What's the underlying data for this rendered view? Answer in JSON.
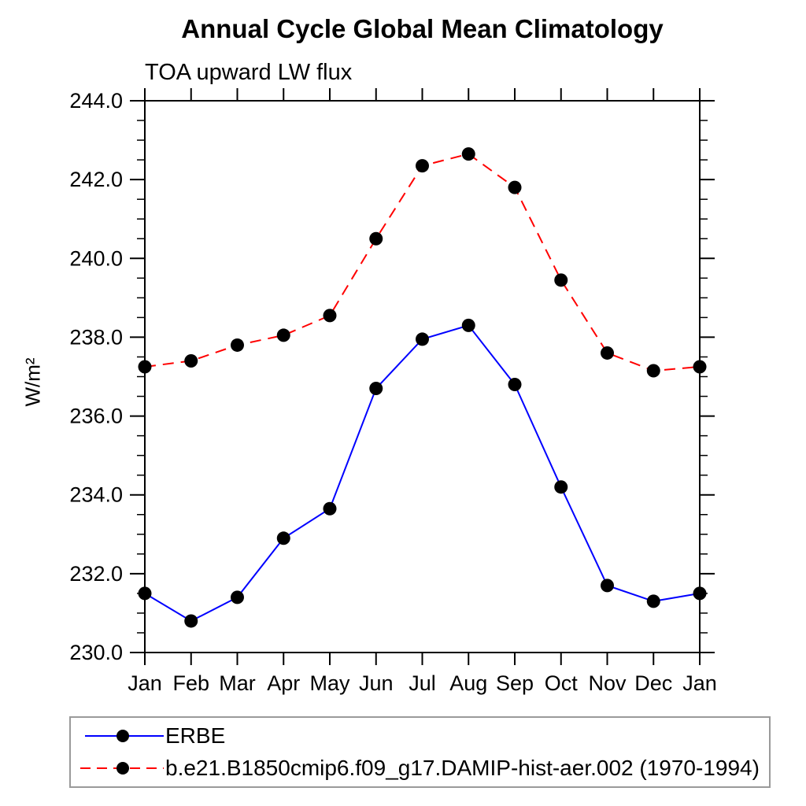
{
  "page_title": "Annual Cycle Global Mean Climatology",
  "colors": {
    "background": "#ffffff",
    "axis": "#000000",
    "erbe_line": "#0000ff",
    "model_line": "#ff0000",
    "marker": "#000000",
    "legend_border": "#9a9a9a"
  },
  "chart_data": {
    "type": "line",
    "title": "Annual Cycle Global Mean Climatology",
    "subtitle": "TOA upward LW flux",
    "xlabel": "",
    "ylabel": "W/m²",
    "categories": [
      "Jan",
      "Feb",
      "Mar",
      "Apr",
      "May",
      "Jun",
      "Jul",
      "Aug",
      "Sep",
      "Oct",
      "Nov",
      "Dec",
      "Jan"
    ],
    "ylim": [
      230.0,
      244.0
    ],
    "ytick_step": 2.0,
    "ytick_minor_step": 0.5,
    "ytick_labels": [
      "230.0",
      "232.0",
      "234.0",
      "236.0",
      "238.0",
      "240.0",
      "242.0",
      "244.0"
    ],
    "grid": false,
    "legend_position": "bottom-left",
    "series": [
      {
        "name": "ERBE",
        "color": "#0000ff",
        "line_style": "solid",
        "marker": "circle",
        "marker_color": "#000000",
        "values": [
          231.5,
          230.8,
          231.4,
          232.9,
          233.65,
          236.7,
          237.95,
          238.3,
          236.8,
          234.2,
          231.7,
          231.3,
          231.5
        ]
      },
      {
        "name": "b.e21.B1850cmip6.f09_g17.DAMIP-hist-aer.002 (1970-1994)",
        "color": "#ff0000",
        "line_style": "dashed",
        "marker": "circle",
        "marker_color": "#000000",
        "values": [
          237.25,
          237.4,
          237.8,
          238.05,
          238.55,
          240.5,
          242.35,
          242.65,
          241.8,
          239.45,
          237.6,
          237.15,
          237.25
        ]
      }
    ]
  }
}
